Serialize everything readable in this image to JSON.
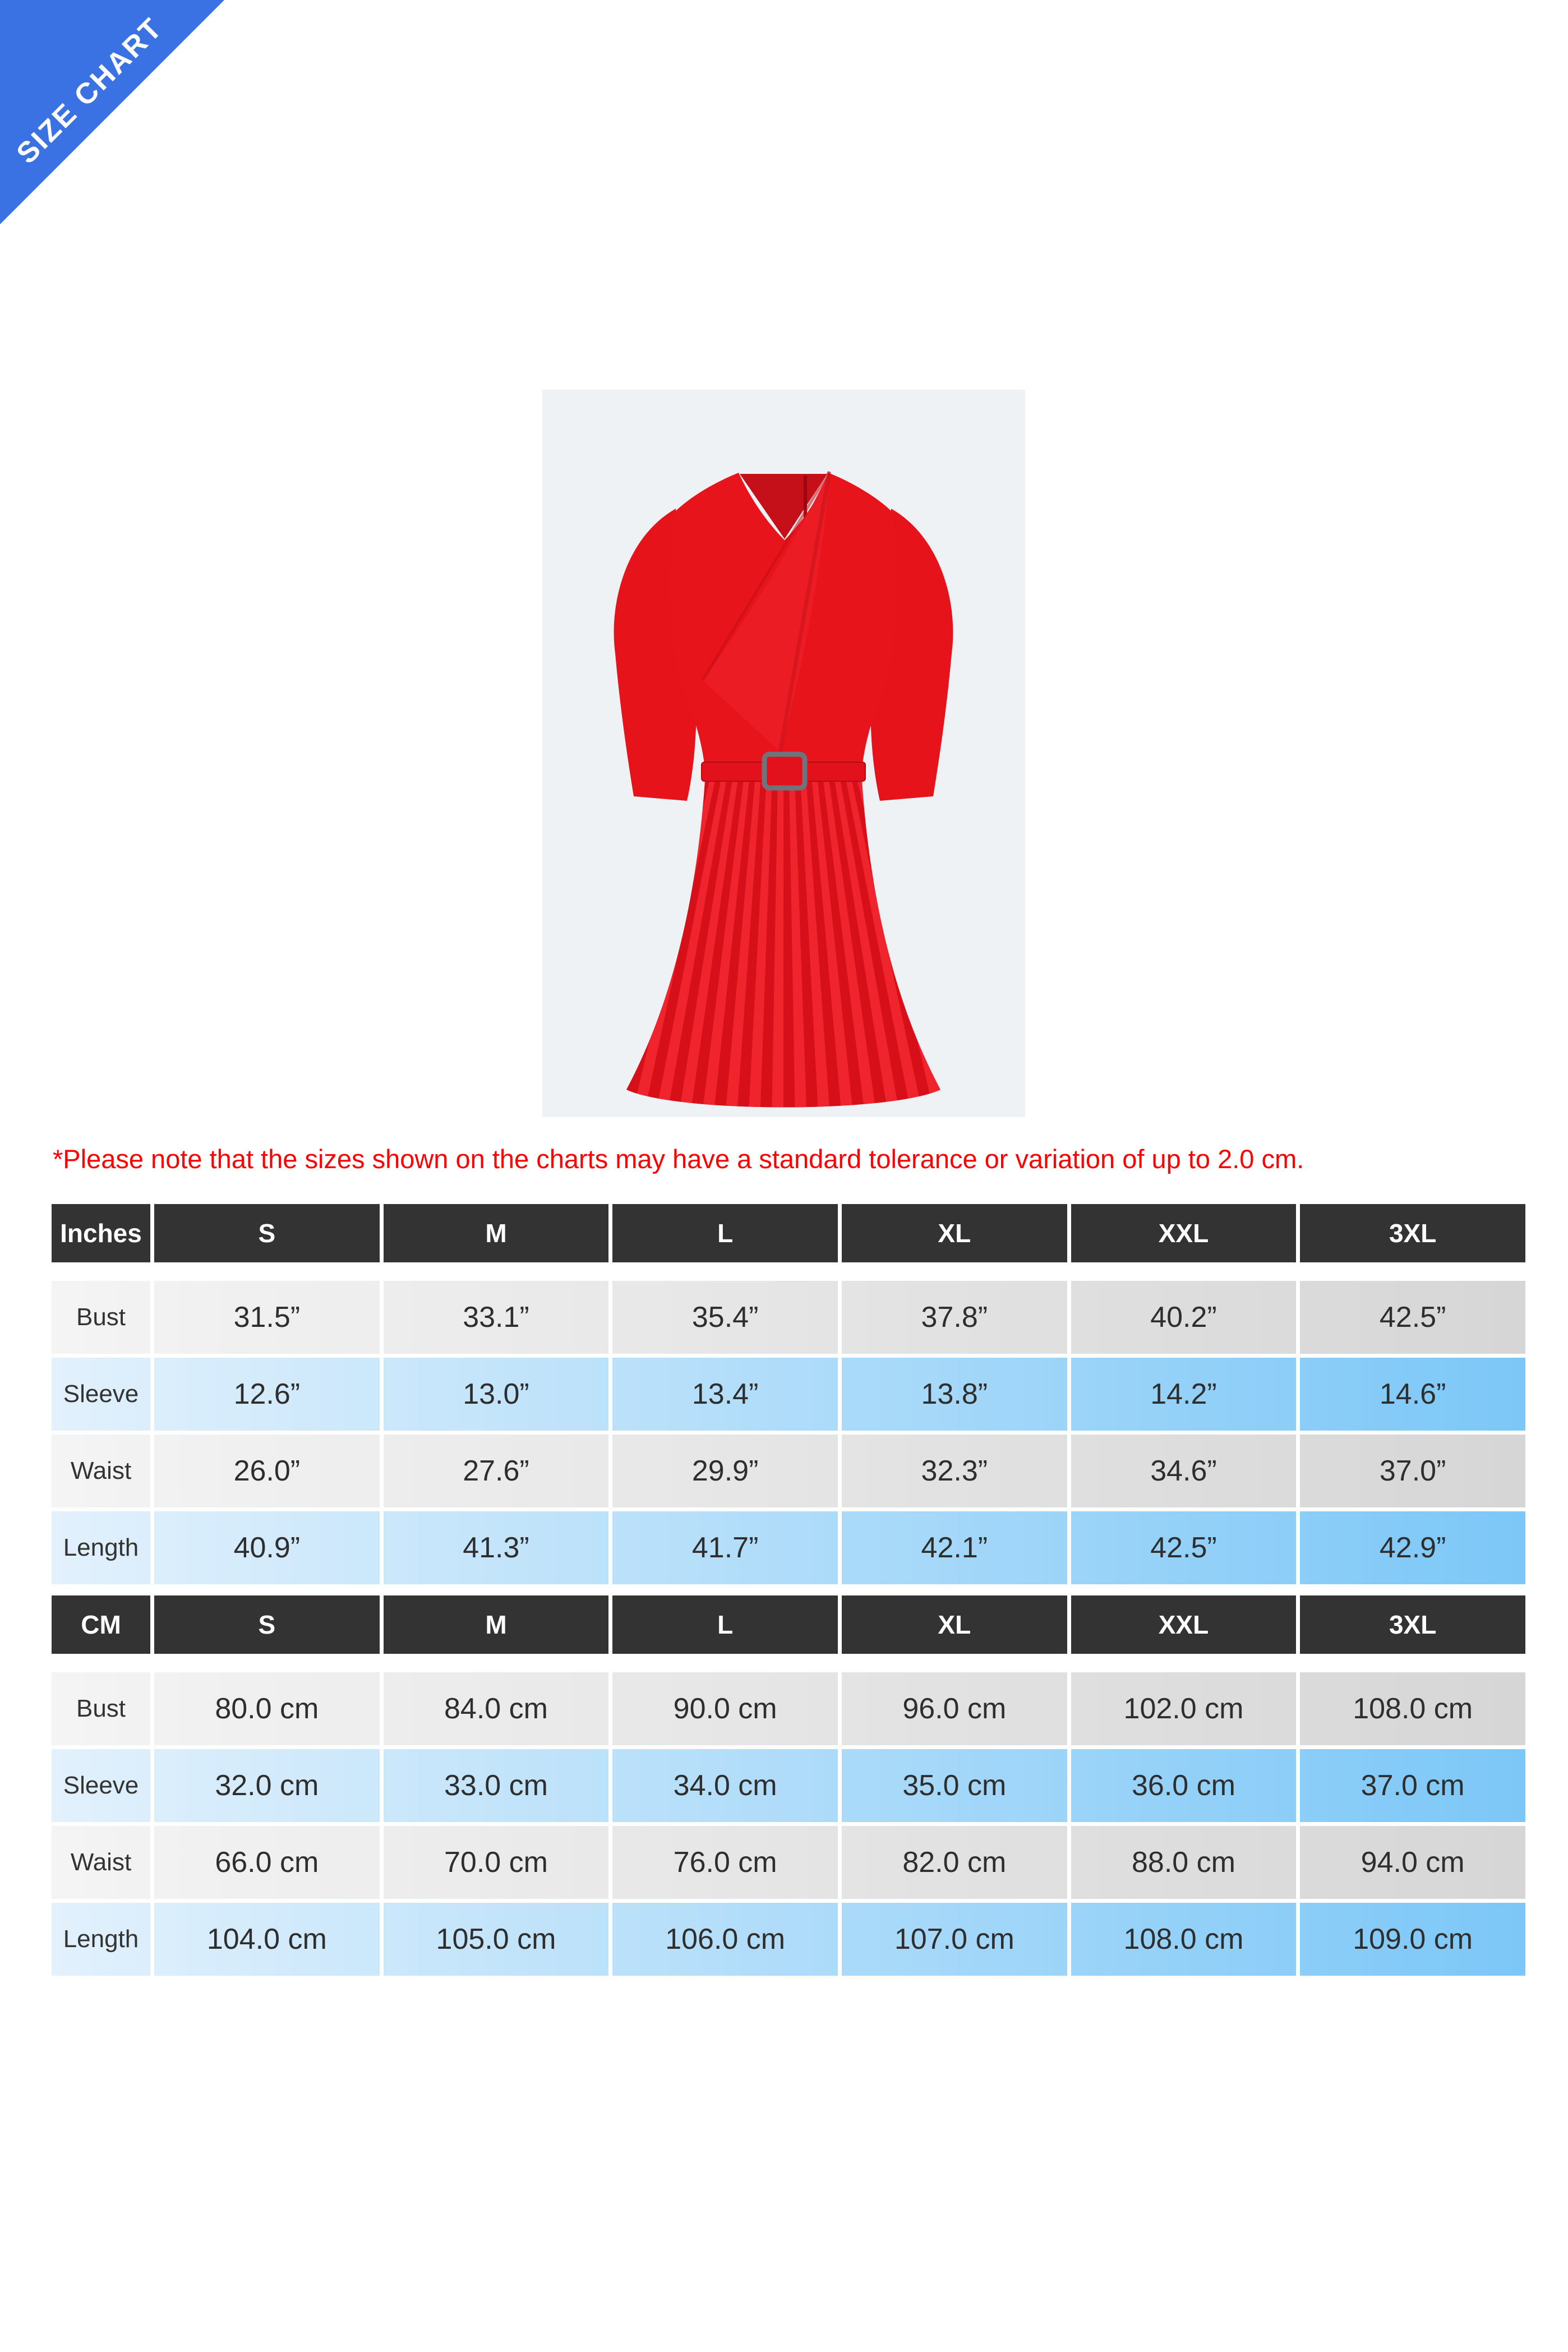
{
  "ribbon": {
    "label": "SIZE CHART"
  },
  "colors": {
    "ribbon-blue": "#3b72e3",
    "header-bg": "#333333",
    "grey-start": "#f4f4f4",
    "grey-end": "#d6d6d6",
    "blue-start": "#e2f1fc",
    "blue-end": "#7cc7f7",
    "note-red": "#ff0000",
    "panel-bg": "#eff2f4",
    "dress-red": "#e8141c"
  },
  "product_image": {
    "description": "Red belted dress with asymmetric fold V-neckline, half sleeves and pleated skirt"
  },
  "disclaimer": "*Please note that the sizes shown on the charts may have a standard tolerance or variation of up to 2.0 cm.",
  "tables": [
    {
      "unit_label": "Inches",
      "sizes": [
        "S",
        "M",
        "L",
        "XL",
        "XXL",
        "3XL"
      ],
      "rows": [
        {
          "label": "Bust",
          "values": [
            "31.5”",
            "33.1”",
            "35.4”",
            "37.8”",
            "40.2”",
            "42.5”"
          ]
        },
        {
          "label": "Sleeve",
          "values": [
            "12.6”",
            "13.0”",
            "13.4”",
            "13.8”",
            "14.2”",
            "14.6”"
          ]
        },
        {
          "label": "Waist",
          "values": [
            "26.0”",
            "27.6”",
            "29.9”",
            "32.3”",
            "34.6”",
            "37.0”"
          ]
        },
        {
          "label": "Length",
          "values": [
            "40.9”",
            "41.3”",
            "41.7”",
            "42.1”",
            "42.5”",
            "42.9”"
          ]
        }
      ]
    },
    {
      "unit_label": "CM",
      "sizes": [
        "S",
        "M",
        "L",
        "XL",
        "XXL",
        "3XL"
      ],
      "rows": [
        {
          "label": "Bust",
          "values": [
            "80.0 cm",
            "84.0 cm",
            "90.0 cm",
            "96.0 cm",
            "102.0 cm",
            "108.0 cm"
          ]
        },
        {
          "label": "Sleeve",
          "values": [
            "32.0 cm",
            "33.0 cm",
            "34.0 cm",
            "35.0 cm",
            "36.0 cm",
            "37.0 cm"
          ]
        },
        {
          "label": "Waist",
          "values": [
            "66.0 cm",
            "70.0 cm",
            "76.0 cm",
            "82.0 cm",
            "88.0 cm",
            "94.0 cm"
          ]
        },
        {
          "label": "Length",
          "values": [
            "104.0 cm",
            "105.0 cm",
            "106.0 cm",
            "107.0 cm",
            "108.0 cm",
            "109.0 cm"
          ]
        }
      ]
    }
  ]
}
